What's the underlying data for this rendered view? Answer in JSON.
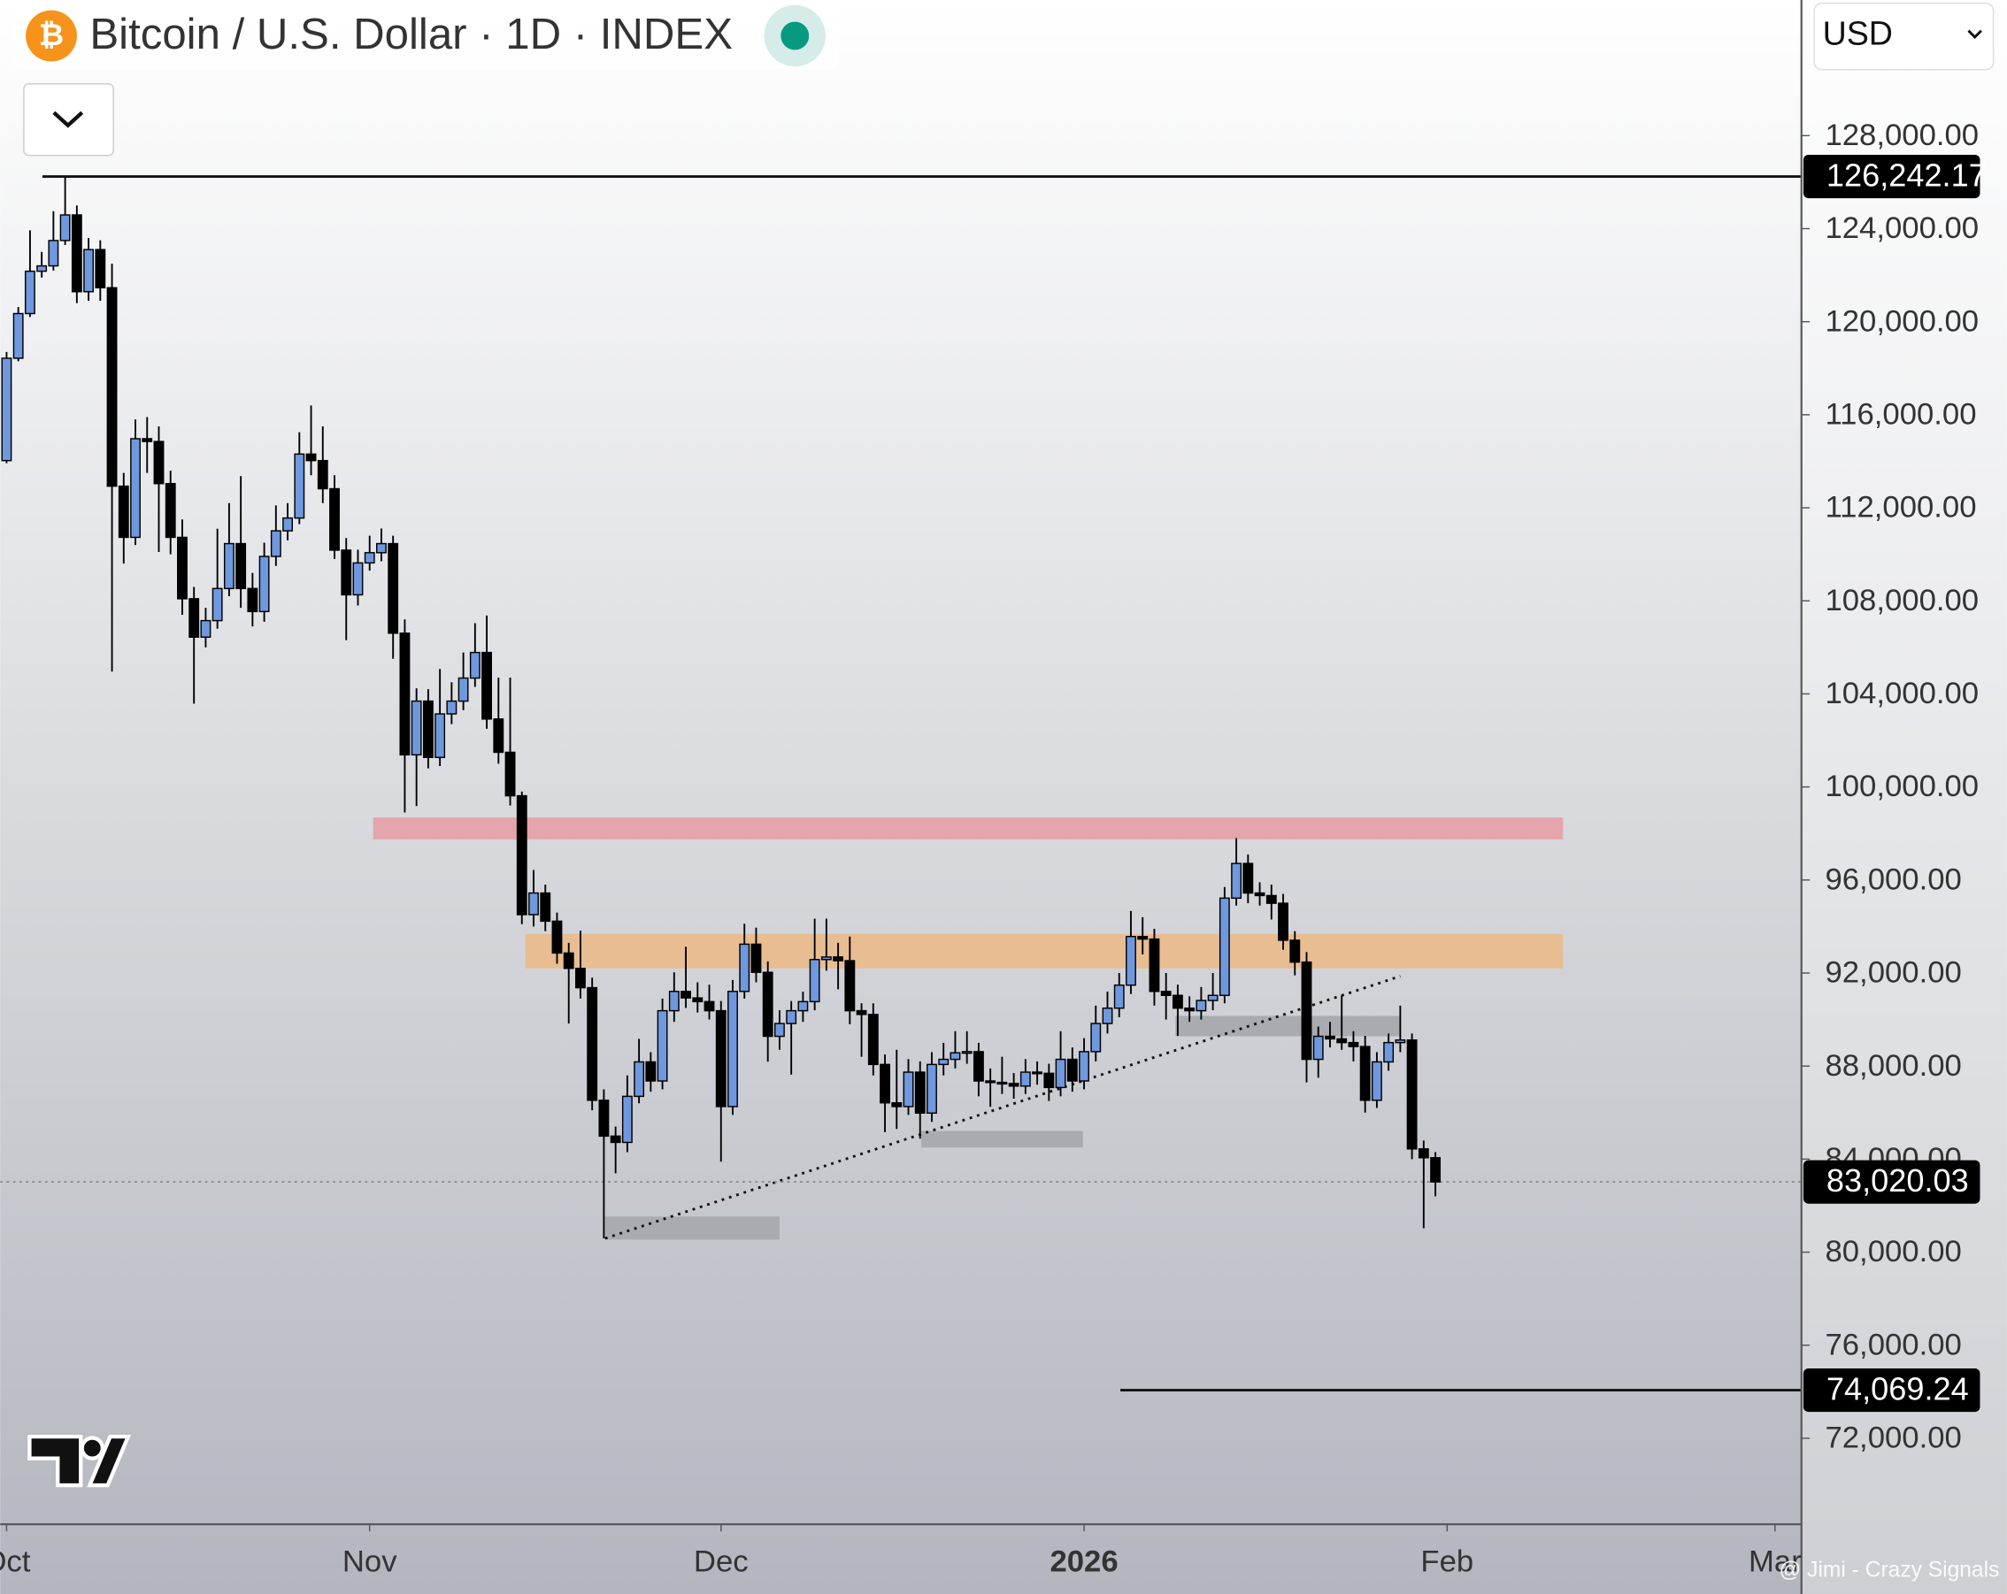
{
  "chart_data": {
    "type": "candlestick",
    "title": "Bitcoin / U.S. Dollar · 1D · INDEX",
    "up_color": "#6f98de",
    "down_color": "#000000",
    "x": [
      0,
      1,
      2,
      3,
      4,
      5,
      6,
      7,
      8,
      9,
      10,
      11,
      12,
      13,
      14,
      15,
      16,
      17,
      18,
      19,
      20,
      21,
      22,
      23,
      24,
      25,
      26,
      27,
      28,
      29,
      30,
      31,
      32,
      33,
      34,
      35,
      36,
      37,
      38,
      39,
      40,
      41,
      42,
      43,
      44,
      45,
      46,
      47,
      48,
      49,
      50,
      51,
      52,
      53,
      54,
      55,
      56,
      57,
      58,
      59,
      60,
      61,
      62,
      63,
      64,
      65,
      66,
      67,
      68,
      69,
      70,
      71,
      72,
      73,
      74,
      75,
      76,
      77,
      78,
      79,
      80,
      81,
      82,
      83,
      84,
      85,
      86,
      87,
      88,
      89,
      90,
      91,
      92,
      93,
      94,
      95,
      96,
      97,
      98,
      99,
      100,
      101,
      102,
      103,
      104,
      105,
      106,
      107,
      108,
      109,
      110,
      111,
      112,
      113,
      114,
      115,
      116,
      117,
      118,
      119,
      120,
      121,
      122
    ],
    "open": [
      114030,
      118430,
      120350,
      122170,
      122400,
      123490,
      124590,
      121290,
      123100,
      121460,
      112930,
      110730,
      114970,
      114850,
      113040,
      110730,
      108090,
      106440,
      107150,
      108530,
      110460,
      108530,
      107540,
      109910,
      111010,
      111560,
      114310,
      114030,
      112820,
      110180,
      108260,
      109630,
      110070,
      110460,
      106610,
      101380,
      103690,
      101270,
      103140,
      103690,
      104680,
      105780,
      102920,
      101490,
      99620,
      94510,
      95440,
      94230,
      92860,
      92200,
      91370,
      86530,
      84990,
      84720,
      86700,
      88180,
      87360,
      90380,
      91210,
      90930,
      90770,
      90380,
      86260,
      91210,
      93240,
      92030,
      89280,
      89830,
      90380,
      90770,
      92580,
      92690,
      92530,
      90380,
      90220,
      88070,
      86420,
      86260,
      87740,
      85980,
      88070,
      88290,
      88570,
      88620,
      87360,
      87300,
      87250,
      87140,
      87740,
      87690,
      87080,
      88290,
      87360,
      88620,
      89830,
      90490,
      91480,
      93570,
      93460,
      91210,
      91040,
      90490,
      90380,
      90820,
      91040,
      95220,
      96710,
      95440,
      95330,
      95000,
      93410,
      92470,
      88290,
      89280,
      89170,
      89010,
      88840,
      86530,
      88180,
      89010,
      89120,
      84440,
      84060
    ],
    "high": [
      118700,
      120630,
      123930,
      123000,
      124750,
      126240,
      125000,
      123600,
      123500,
      122500,
      113500,
      115800,
      115900,
      115500,
      113600,
      111500,
      108600,
      107700,
      111100,
      112200,
      113360,
      109200,
      110500,
      112100,
      112200,
      115250,
      116400,
      115500,
      113400,
      110700,
      110200,
      110800,
      111110,
      110800,
      107200,
      104240,
      104200,
      105070,
      104500,
      105780,
      107040,
      107370,
      104700,
      104700,
      99800,
      96430,
      95800,
      94600,
      93300,
      93820,
      91800,
      87000,
      85400,
      87600,
      89170,
      88600,
      90900,
      92030,
      93130,
      91600,
      91500,
      90800,
      91700,
      94120,
      93950,
      92500,
      90400,
      90800,
      91200,
      94340,
      94340,
      93300,
      93570,
      90700,
      90700,
      88500,
      88700,
      88300,
      88200,
      88600,
      89000,
      89500,
      89500,
      89000,
      87900,
      88400,
      87700,
      88300,
      88200,
      88100,
      89500,
      88800,
      89200,
      90600,
      91200,
      92000,
      94670,
      94400,
      93900,
      92000,
      91500,
      91000,
      91400,
      92000,
      95700,
      97800,
      97100,
      95900,
      95800,
      95400,
      93800,
      92900,
      89700,
      89900,
      91040,
      89500,
      89300,
      88600,
      89400,
      90600,
      89400,
      84800,
      84300
    ],
    "low": [
      113920,
      118300,
      120200,
      121900,
      122200,
      123300,
      120800,
      120900,
      120900,
      104960,
      109600,
      110400,
      113500,
      110100,
      110000,
      107400,
      103580,
      106000,
      106800,
      108200,
      107700,
      106900,
      107100,
      109500,
      110600,
      111300,
      113400,
      112200,
      109800,
      106310,
      107800,
      109300,
      109700,
      105510,
      98900,
      99180,
      100800,
      100900,
      102700,
      103300,
      104300,
      102500,
      101000,
      99200,
      94100,
      94000,
      93800,
      92400,
      89830,
      90900,
      86100,
      80590,
      83390,
      84300,
      86400,
      86900,
      87000,
      89900,
      90500,
      90300,
      90000,
      83890,
      85900,
      90900,
      91600,
      88190,
      88700,
      87630,
      89900,
      90400,
      92100,
      91300,
      89800,
      88400,
      87600,
      85160,
      85300,
      85900,
      84880,
      85600,
      87600,
      87900,
      88100,
      86700,
      86250,
      86800,
      86600,
      86800,
      87200,
      86500,
      86700,
      86900,
      87000,
      88200,
      89400,
      90100,
      91100,
      92800,
      90600,
      90000,
      89300,
      89900,
      90000,
      90400,
      90700,
      94900,
      95000,
      94900,
      94300,
      93000,
      91900,
      87300,
      87500,
      88800,
      88700,
      88200,
      86000,
      86200,
      87800,
      88600,
      84000,
      81030,
      82400
    ],
    "close": [
      118430,
      120350,
      122170,
      122400,
      123490,
      124590,
      121290,
      123100,
      121460,
      112930,
      110730,
      114970,
      114850,
      113040,
      110730,
      108090,
      106440,
      107150,
      108530,
      110460,
      108530,
      107540,
      109910,
      111010,
      111560,
      114310,
      114030,
      112820,
      110180,
      108260,
      109630,
      110070,
      110460,
      106610,
      101380,
      103690,
      101270,
      103140,
      103690,
      104680,
      105780,
      102920,
      101490,
      99620,
      94510,
      95440,
      94230,
      92860,
      92200,
      91370,
      86530,
      84990,
      84720,
      86700,
      88180,
      87360,
      90380,
      91210,
      90930,
      90770,
      90380,
      86260,
      91210,
      93240,
      92030,
      89280,
      89830,
      90380,
      90770,
      92580,
      92690,
      92530,
      90380,
      90220,
      88070,
      86420,
      86260,
      87740,
      85980,
      88070,
      88290,
      88570,
      88620,
      87360,
      87300,
      87250,
      87140,
      87740,
      87690,
      87080,
      88290,
      87360,
      88620,
      89830,
      90490,
      91480,
      93570,
      93460,
      91210,
      91040,
      90490,
      90380,
      90820,
      91040,
      95220,
      96710,
      95440,
      95330,
      95000,
      93410,
      92470,
      88290,
      89280,
      89170,
      89010,
      88840,
      86530,
      88180,
      89010,
      89120,
      84440,
      84060,
      83020.03
    ],
    "xlim": [
      -0.55,
      153.2
    ],
    "xticks": [
      {
        "value": 0,
        "label": "Oct"
      },
      {
        "value": 31,
        "label": "Nov"
      },
      {
        "value": 61,
        "label": "Dec"
      },
      {
        "value": 92,
        "label": "2026"
      },
      {
        "value": 123,
        "label": "Feb"
      },
      {
        "value": 151,
        "label": "Mar"
      }
    ],
    "ylim": [
      68330,
      133830
    ],
    "yticks": [
      {
        "value": 72000,
        "label": "72,000.00"
      },
      {
        "value": 76000,
        "label": "76,000.00"
      },
      {
        "value": 80000,
        "label": "80,000.00"
      },
      {
        "value": 84000,
        "label": "84,000.00"
      },
      {
        "value": 88000,
        "label": "88,000.00"
      },
      {
        "value": 92000,
        "label": "92,000.00"
      },
      {
        "value": 96000,
        "label": "96,000.00"
      },
      {
        "value": 100000,
        "label": "100,000.00"
      },
      {
        "value": 104000,
        "label": "104,000.00"
      },
      {
        "value": 108000,
        "label": "108,000.00"
      },
      {
        "value": 112000,
        "label": "112,000.00"
      },
      {
        "value": 116000,
        "label": "116,000.00"
      },
      {
        "value": 120000,
        "label": "120,000.00"
      },
      {
        "value": 124000,
        "label": "124,000.00"
      },
      {
        "value": 128000,
        "label": "128,000.00"
      }
    ],
    "price_lines": [
      {
        "value": 126242.17,
        "label": "126,242.17",
        "x_start": 3.06,
        "style": "solid"
      },
      {
        "value": 83020.03,
        "label": "83,020.03",
        "x_start": -0.55,
        "style": "dotted"
      },
      {
        "value": 74069.24,
        "label": "74,069.24",
        "x_start": 95.1,
        "style": "solid"
      }
    ],
    "zones": [
      {
        "x": [
          31.3,
          132.9
        ],
        "y": [
          97750,
          98690
        ],
        "color": "#e4a5ad"
      },
      {
        "x": [
          44.3,
          132.9
        ],
        "y": [
          92200,
          93680
        ],
        "color": "#e8bd92"
      },
      {
        "x": [
          51.1,
          66.0
        ],
        "y": [
          80540,
          81530
        ],
        "color": "#a9abb1"
      },
      {
        "x": [
          78.1,
          91.9
        ],
        "y": [
          84500,
          85210
        ],
        "color": "#a9abb1"
      },
      {
        "x": [
          99.8,
          119.0
        ],
        "y": [
          89280,
          90160
        ],
        "color": "#a9abb1"
      }
    ],
    "trendline": {
      "x": [
        51.1,
        119.0
      ],
      "y": [
        80590,
        91865
      ]
    }
  },
  "currency_selector": "USD",
  "watermark": "@ Jimi - Crazy Signals"
}
